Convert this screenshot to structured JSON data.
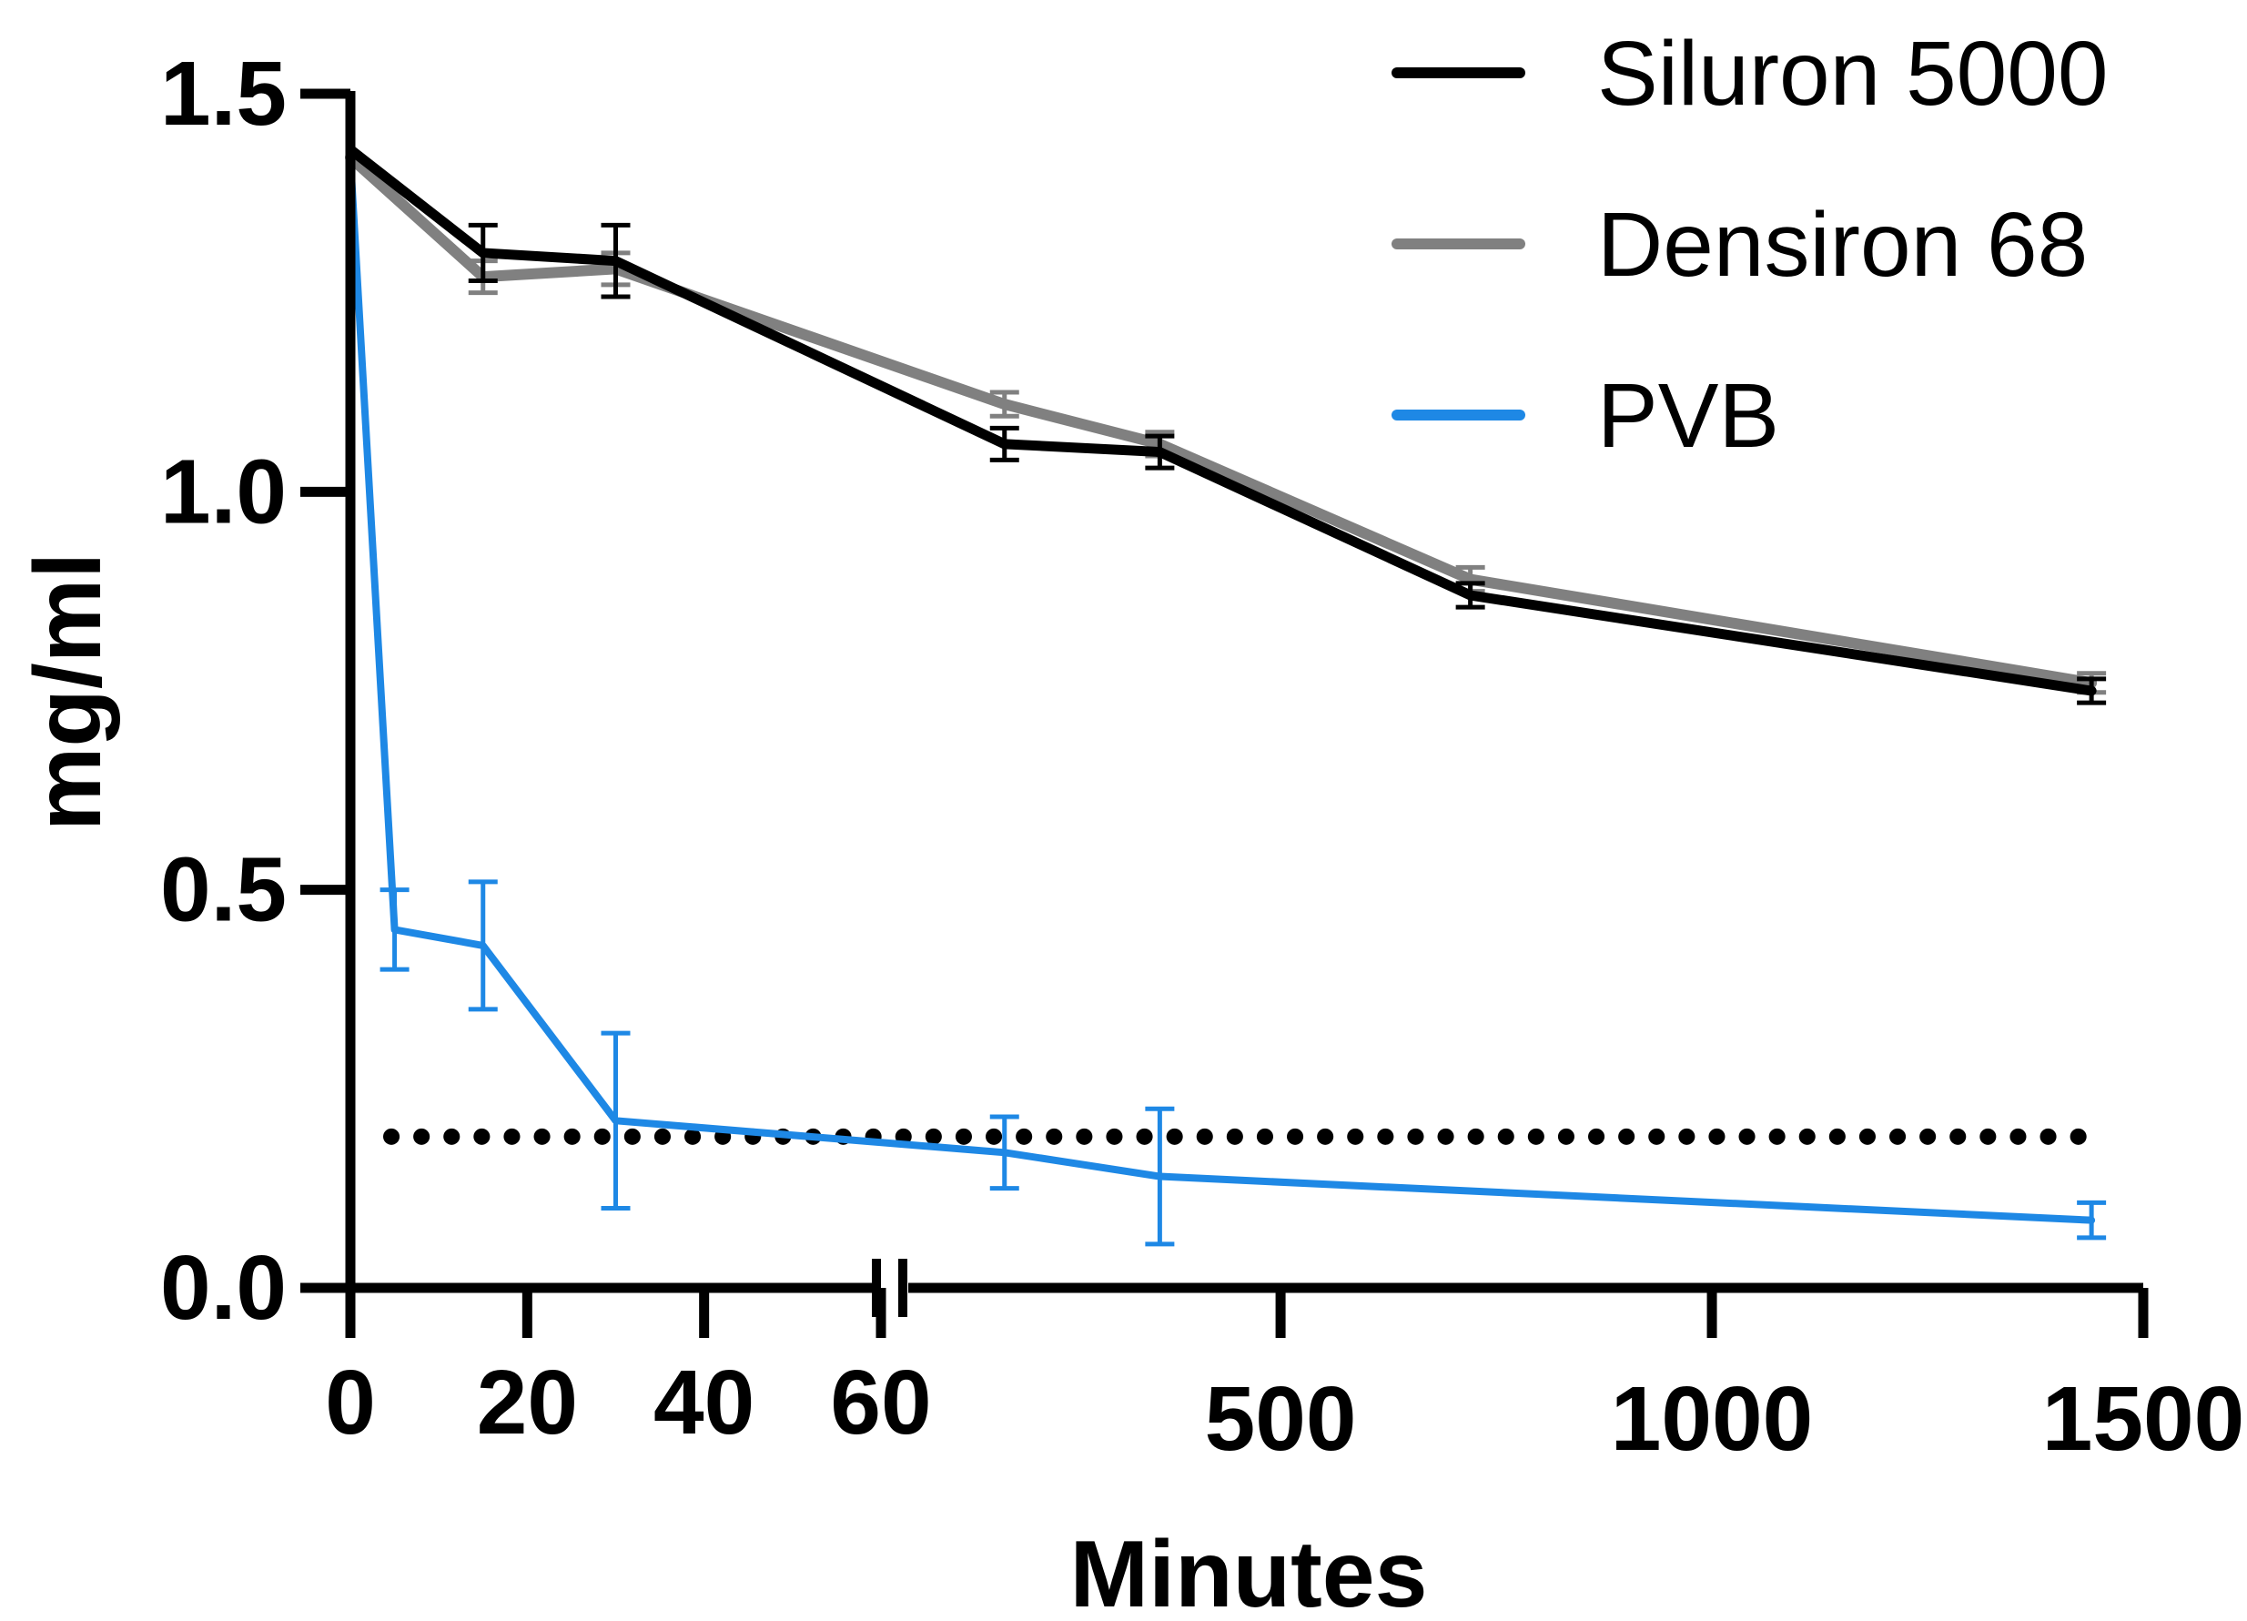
{
  "chart_data": {
    "type": "line",
    "title": "",
    "xlabel": "Minutes",
    "ylabel": "mg/ml",
    "ylim": [
      0,
      1.5
    ],
    "x_axis": {
      "broken": true,
      "segment1": {
        "range": [
          0,
          60
        ],
        "ticks": [
          "0",
          "20",
          "40",
          "60"
        ]
      },
      "segment2": {
        "range": [
          60,
          1500
        ],
        "ticks": [
          "500",
          "1000",
          "1500"
        ]
      }
    },
    "y_ticks": [
      "0.0",
      "0.5",
      "1.0",
      "1.5"
    ],
    "legend_position": "top-right",
    "threshold_line": {
      "value": 0.19,
      "style": "dotted",
      "color": "#000000"
    },
    "series": [
      {
        "name": "Siluron 5000",
        "color": "#000000",
        "points": [
          {
            "x": 0,
            "y": 1.43,
            "err": 0
          },
          {
            "x": 15,
            "y": 1.3,
            "err": 0.035
          },
          {
            "x": 30,
            "y": 1.29,
            "err": 0.045
          },
          {
            "x": 180,
            "y": 1.06,
            "err": 0.02
          },
          {
            "x": 360,
            "y": 1.05,
            "err": 0.02
          },
          {
            "x": 720,
            "y": 0.87,
            "err": 0.015
          },
          {
            "x": 1440,
            "y": 0.75,
            "err": 0.015
          }
        ]
      },
      {
        "name": "Densiron 68",
        "color": "#808080",
        "points": [
          {
            "x": 0,
            "y": 1.42,
            "err": 0
          },
          {
            "x": 15,
            "y": 1.27,
            "err": 0.02
          },
          {
            "x": 30,
            "y": 1.28,
            "err": 0.02
          },
          {
            "x": 180,
            "y": 1.11,
            "err": 0.015
          },
          {
            "x": 360,
            "y": 1.06,
            "err": 0.015
          },
          {
            "x": 720,
            "y": 0.89,
            "err": 0.015
          },
          {
            "x": 1440,
            "y": 0.76,
            "err": 0.012
          }
        ]
      },
      {
        "name": "PVB",
        "color": "#1e88e5",
        "points": [
          {
            "x": 0,
            "y": 1.42,
            "err": 0
          },
          {
            "x": 5,
            "y": 0.45,
            "err": 0.05
          },
          {
            "x": 15,
            "y": 0.43,
            "err": 0.08
          },
          {
            "x": 30,
            "y": 0.21,
            "err": 0.11
          },
          {
            "x": 180,
            "y": 0.17,
            "err": 0.045
          },
          {
            "x": 360,
            "y": 0.14,
            "err": 0.085
          },
          {
            "x": 1440,
            "y": 0.085,
            "err": 0.022
          }
        ]
      }
    ]
  }
}
